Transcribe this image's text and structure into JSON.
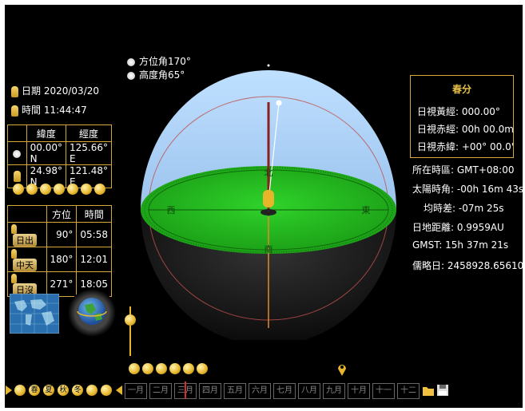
{
  "azimuth": {
    "label": "方位角",
    "value": "170°"
  },
  "altitude": {
    "label": "高度角",
    "value": "65°"
  },
  "date": {
    "label": "日期",
    "value": "2020/03/20"
  },
  "time": {
    "label": "時間",
    "value": "11:44:47"
  },
  "coords": {
    "lat_header": "緯度",
    "lon_header": "經度",
    "rows": [
      {
        "lat": "00.00° N",
        "lon": "125.66° E"
      },
      {
        "lat": "24.98° N",
        "lon": "121.48° E"
      }
    ]
  },
  "sun_events": {
    "azimuth_header": "方位",
    "time_header": "時間",
    "rows": [
      {
        "label": "日出",
        "azimuth": "90°",
        "time": "05:58"
      },
      {
        "label": "中天",
        "azimuth": "180°",
        "time": "12:01"
      },
      {
        "label": "日沒",
        "azimuth": "271°",
        "time": "18:05"
      }
    ]
  },
  "equinox": {
    "title": "春分",
    "lines": [
      "日視黃經: 000.00°",
      "日視赤經: 00h 00.0m",
      "日視赤緯: +00° 00.0'"
    ]
  },
  "info": [
    "所在時區: GMT+08:00",
    "太陽時角: -00h 16m 43s",
    "均時差: -07m 25s",
    "日地距離: 0.9959AU",
    "GMST: 15h 37m 21s",
    "儒略日: 2458928.65610"
  ],
  "compass": {
    "north": "北",
    "south": "南",
    "east": "東",
    "west": "西"
  },
  "months": [
    "一月",
    "二月",
    "三月",
    "四月",
    "五月",
    "六月",
    "七月",
    "八月",
    "九月",
    "十月",
    "十一",
    "十二"
  ],
  "seasons": [
    "春",
    "夏",
    "秋",
    "冬"
  ],
  "colors": {
    "sky": "#a9cdf2",
    "ground": "#25c21d",
    "frame": "#d4a83a"
  }
}
